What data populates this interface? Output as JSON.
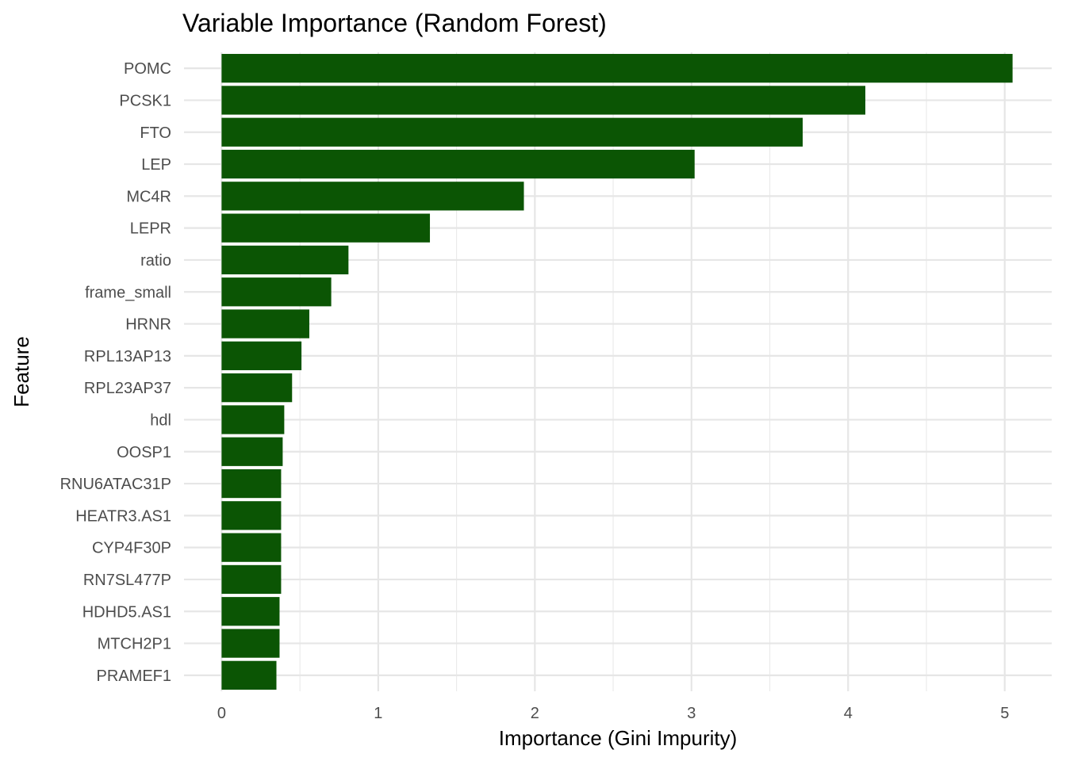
{
  "chart_data": {
    "type": "bar",
    "orientation": "horizontal",
    "title": "Variable Importance (Random Forest)",
    "xlabel": "Importance (Gini Impurity)",
    "ylabel": "Feature",
    "xlim": [
      -0.24,
      5.3
    ],
    "x_ticks": [
      "0",
      "1",
      "2",
      "3",
      "4",
      "5"
    ],
    "grid": true,
    "legend": "none",
    "bar_color": "#0B5504",
    "categories": [
      "POMC",
      "PCSK1",
      "FTO",
      "LEP",
      "MC4R",
      "LEPR",
      "ratio",
      "frame_small",
      "HRNR",
      "RPL13AP13",
      "RPL23AP37",
      "hdl",
      "OOSP1",
      "RNU6ATAC31P",
      "HEATR3.AS1",
      "CYP4F30P",
      "RN7SL477P",
      "HDHD5.AS1",
      "MTCH2P1",
      "PRAMEF1"
    ],
    "values": [
      5.05,
      4.11,
      3.71,
      3.02,
      1.93,
      1.33,
      0.81,
      0.7,
      0.56,
      0.51,
      0.45,
      0.4,
      0.39,
      0.38,
      0.38,
      0.38,
      0.38,
      0.37,
      0.37,
      0.35
    ]
  }
}
